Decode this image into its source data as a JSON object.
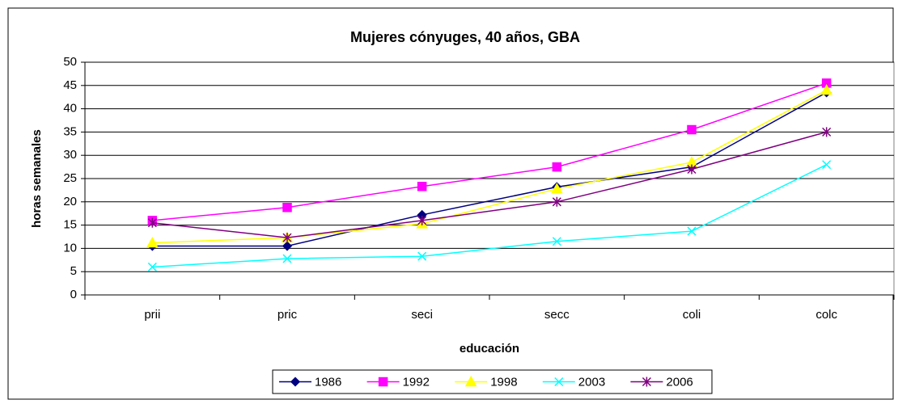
{
  "chart_data": {
    "type": "line",
    "title": "Mujeres cónyuges, 40 años, GBA",
    "x_label": "educación",
    "y_label": "horas semanales",
    "categories": [
      "prii",
      "pric",
      "seci",
      "secc",
      "coli",
      "colc"
    ],
    "series": [
      {
        "name": "1986",
        "color": "#000080",
        "marker": "diamond",
        "values": [
          10.5,
          10.5,
          17.2,
          23.2,
          27.5,
          43.5
        ]
      },
      {
        "name": "1992",
        "color": "#ff00ff",
        "marker": "square",
        "values": [
          16,
          18.8,
          23.3,
          27.5,
          35.5,
          45.5
        ]
      },
      {
        "name": "1998",
        "color": "#ffff00",
        "marker": "triangle",
        "values": [
          11.2,
          12.3,
          15.3,
          22.8,
          28.5,
          44
        ]
      },
      {
        "name": "2003",
        "color": "#00ffff",
        "marker": "x",
        "values": [
          6,
          7.8,
          8.3,
          11.5,
          13.7,
          28
        ]
      },
      {
        "name": "2006",
        "color": "#800080",
        "marker": "star",
        "values": [
          15.5,
          12.3,
          16,
          20,
          27,
          35
        ]
      }
    ],
    "ylim": [
      0,
      50
    ],
    "yticks": [
      0,
      5,
      10,
      15,
      20,
      25,
      30,
      35,
      40,
      45,
      50
    ],
    "grid": true,
    "legend": "bottom"
  }
}
